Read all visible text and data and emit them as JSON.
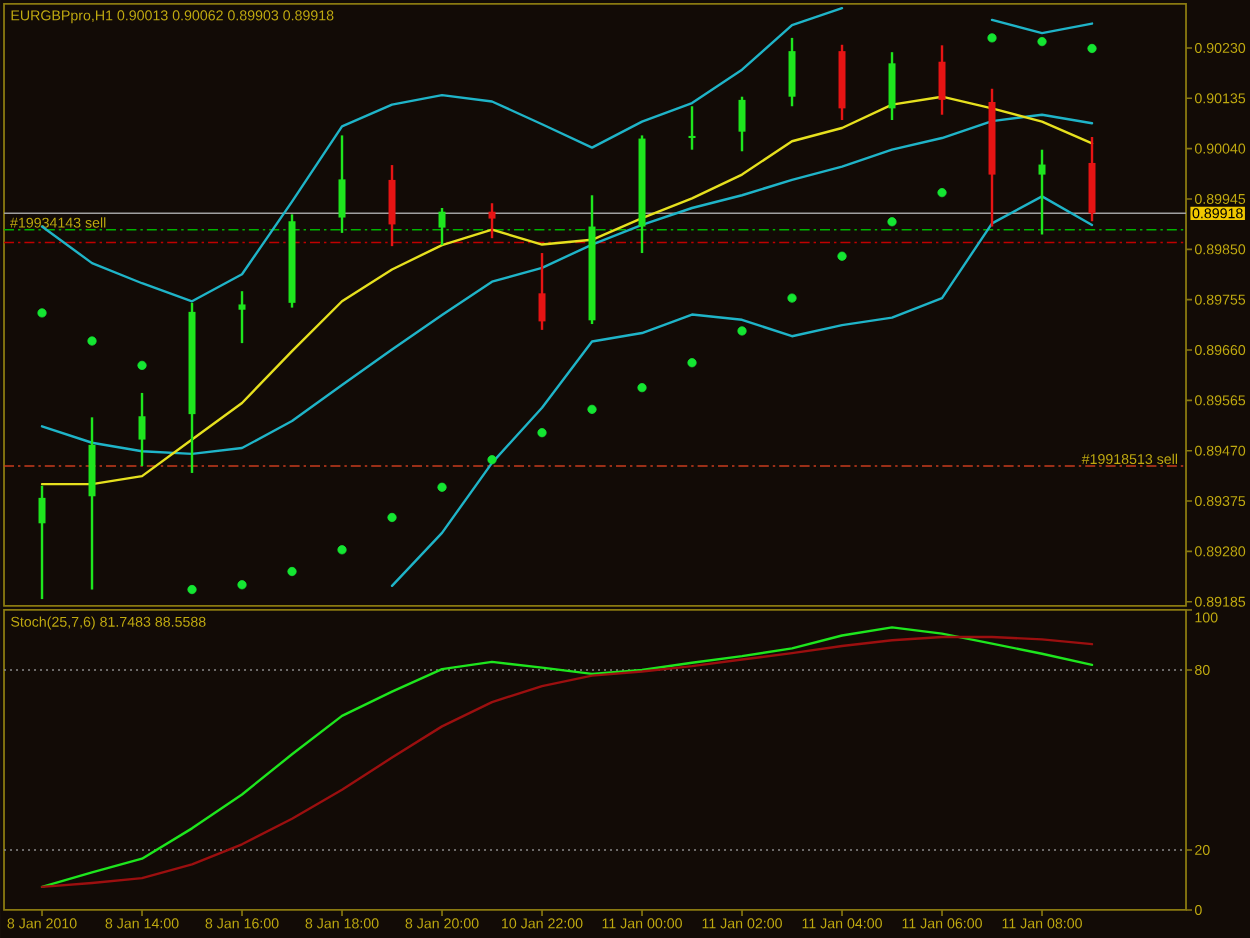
{
  "chart_data": [
    {
      "type": "candlestick",
      "title": "EURGBPpro,H1 0.90013 0.90062 0.89903 0.89918",
      "categories": [
        null,
        null,
        null,
        null,
        null,
        null,
        null,
        null,
        null,
        null,
        null,
        null,
        null,
        null,
        null,
        null,
        null,
        null,
        null,
        null,
        null,
        null
      ],
      "ohlc": [
        [
          0.89333,
          0.89404,
          0.8919,
          0.89381
        ],
        [
          0.89384,
          0.89533,
          0.89208,
          0.89481
        ],
        [
          0.89491,
          0.89579,
          0.89441,
          0.89535
        ],
        [
          0.89539,
          0.89749,
          0.89428,
          0.89732
        ],
        [
          0.89736,
          0.89771,
          0.89673,
          0.89746
        ],
        [
          0.89749,
          0.89916,
          0.8974,
          0.89903
        ],
        [
          0.8991,
          0.90065,
          0.89881,
          0.89982
        ],
        [
          0.89981,
          0.90009,
          0.89856,
          0.89897
        ],
        [
          0.89891,
          0.89928,
          0.89858,
          0.89921
        ],
        [
          0.89921,
          0.89937,
          0.89871,
          0.89908
        ],
        [
          0.89767,
          0.89843,
          0.89698,
          0.89714
        ],
        [
          0.89716,
          0.89952,
          0.89709,
          0.89893
        ],
        [
          0.89893,
          0.90065,
          0.89843,
          0.90059
        ],
        [
          0.9006,
          0.9012,
          0.90038,
          0.90064
        ],
        [
          0.90072,
          0.90138,
          0.90035,
          0.90132
        ],
        [
          0.90138,
          0.90249,
          0.9012,
          0.90224
        ],
        [
          0.90224,
          0.90236,
          0.90094,
          0.90116
        ],
        [
          0.90116,
          0.90222,
          0.90094,
          0.90201
        ],
        [
          0.90204,
          0.90235,
          0.90104,
          0.90132
        ],
        [
          0.90128,
          0.90153,
          0.89893,
          0.89991
        ],
        [
          0.89991,
          0.90038,
          0.89878,
          0.9001
        ],
        [
          0.90013,
          0.90062,
          0.89903,
          0.89918
        ]
      ],
      "colors": [
        "#1ee61e",
        "#1ee61e",
        "#1ee61e",
        "#1ee61e",
        "#1ee61e",
        "#1ee61e",
        "#1ee61e",
        "#e61414",
        "#1ee61e",
        "#e61414",
        "#e61414",
        "#1ee61e",
        "#1ee61e",
        "#1ee61e",
        "#1ee61e",
        "#1ee61e",
        "#e61414",
        "#1ee61e",
        "#e61414",
        "#e61414",
        "#1ee61e",
        "#e61414"
      ],
      "series": [
        {
          "type": "line",
          "color": "#1fb4c8",
          "values": [
            0.89893,
            0.89824,
            0.89786,
            0.89752,
            0.89803,
            0.8994,
            0.90082,
            0.90123,
            0.90141,
            0.90129,
            0.90086,
            0.90042,
            0.90091,
            0.90126,
            0.90189,
            0.90273,
            0.90305,
            null,
            null,
            0.90283,
            0.90258,
            0.90276
          ]
        },
        {
          "type": "line",
          "color": "#1fb4c8",
          "values": [
            0.89516,
            0.89485,
            0.89469,
            0.89464,
            0.89475,
            0.89526,
            0.89594,
            0.89661,
            0.89726,
            0.89789,
            0.89815,
            0.89859,
            0.89896,
            0.89928,
            0.89952,
            0.89981,
            0.90006,
            0.90038,
            0.9006,
            0.90092,
            0.90104,
            0.90088
          ]
        },
        {
          "type": "line",
          "color": "#1fb4c8",
          "values": [
            null,
            null,
            null,
            null,
            null,
            null,
            null,
            0.89215,
            0.89315,
            0.89447,
            0.89551,
            0.89676,
            0.89692,
            0.89727,
            0.89717,
            0.89686,
            0.89707,
            0.89721,
            0.89758,
            0.89899,
            0.8995,
            0.89896
          ]
        },
        {
          "type": "line",
          "color": "#e6e01e",
          "values": [
            0.89407,
            0.89407,
            0.89422,
            0.89491,
            0.8956,
            0.89658,
            0.89752,
            0.89812,
            0.89858,
            0.89887,
            0.89859,
            0.89868,
            0.89909,
            0.89946,
            0.89991,
            0.90054,
            0.90079,
            0.90123,
            0.90138,
            0.90116,
            0.90091,
            0.9005
          ]
        },
        {
          "type": "scatter",
          "color": "#14e632",
          "marker": "circle",
          "values": [
            0.8973,
            0.89677,
            0.89631,
            0.89208,
            0.89217,
            0.89242,
            0.89283,
            0.89344,
            0.89401,
            0.89453,
            0.89504,
            0.89548,
            0.89589,
            0.89636,
            0.89696,
            0.89758,
            0.89837,
            0.89902,
            0.89957,
            0.90249,
            0.90242,
            0.90229
          ]
        }
      ],
      "ylim": [
        0.89177,
        0.90313
      ],
      "yticks": [
        0.89185,
        {
          "value": 0.8928,
          "label": "0.89280"
        },
        0.89375,
        {
          "value": 0.8947,
          "label": "0.89470"
        },
        0.89565,
        {
          "value": 0.8966,
          "label": "0.89660"
        },
        0.89755,
        {
          "value": 0.8985,
          "label": "0.89850"
        },
        0.89945,
        {
          "value": 0.9004,
          "label": "0.90040"
        },
        0.90135,
        {
          "value": 0.9023,
          "label": "0.90230"
        }
      ],
      "ref_lines": [
        {
          "axis": "y",
          "value": 0.89441,
          "label": "#19918513 sell",
          "color": "#c83c1e",
          "line_style": "dashdot"
        },
        {
          "axis": "y",
          "value": 0.89863,
          "color": "#c00000",
          "line_style": "dashdot"
        },
        {
          "axis": "y",
          "value": 0.89887,
          "label": "#19934143 sell",
          "color": "#00b400",
          "line_style": "dashdot"
        },
        {
          "axis": "y",
          "value": 0.89918,
          "label": "0.89918",
          "color": "#a0a0a0",
          "line_style": "solid"
        }
      ],
      "tick_labels": "y"
    },
    {
      "type": "line",
      "title": "Stoch(25,7,6) 81.7483 88.5588",
      "categories": [
        "8 Jan 2010",
        null,
        "8 Jan 14:00",
        null,
        "8 Jan 16:00",
        null,
        "8 Jan 18:00",
        null,
        "8 Jan 20:00",
        null,
        "10 Jan 22:00",
        null,
        "11 Jan 00:00",
        null,
        "11 Jan 02:00",
        null,
        "11 Jan 04:00",
        null,
        "11 Jan 06:00",
        null,
        "11 Jan 08:00",
        null
      ],
      "series": [
        {
          "color": "#1ee61e",
          "values": [
            7.7,
            12.5,
            17.1,
            27.2,
            38.5,
            51.9,
            64.7,
            72.8,
            80.3,
            82.7,
            80.8,
            78.7,
            80.0,
            82.4,
            84.6,
            87.2,
            91.5,
            94.2,
            92.1,
            88.8,
            85.4,
            81.7
          ]
        },
        {
          "color": "#9b0f0f",
          "values": [
            7.7,
            9.0,
            10.6,
            15.2,
            21.9,
            30.4,
            40.1,
            50.8,
            61.2,
            69.3,
            74.6,
            78.1,
            79.5,
            81.3,
            83.5,
            85.6,
            88.0,
            89.9,
            91.0,
            91.0,
            90.2,
            88.6
          ]
        }
      ],
      "ylim": [
        0,
        100
      ],
      "yticks": [
        0,
        20,
        80,
        100
      ],
      "ref_lines": [
        {
          "axis": "y",
          "value": 80,
          "color": "#8c8c8c",
          "line_style": "dotted"
        },
        {
          "axis": "y",
          "value": 20,
          "color": "#8c8c8c",
          "line_style": "dotted"
        }
      ]
    }
  ]
}
